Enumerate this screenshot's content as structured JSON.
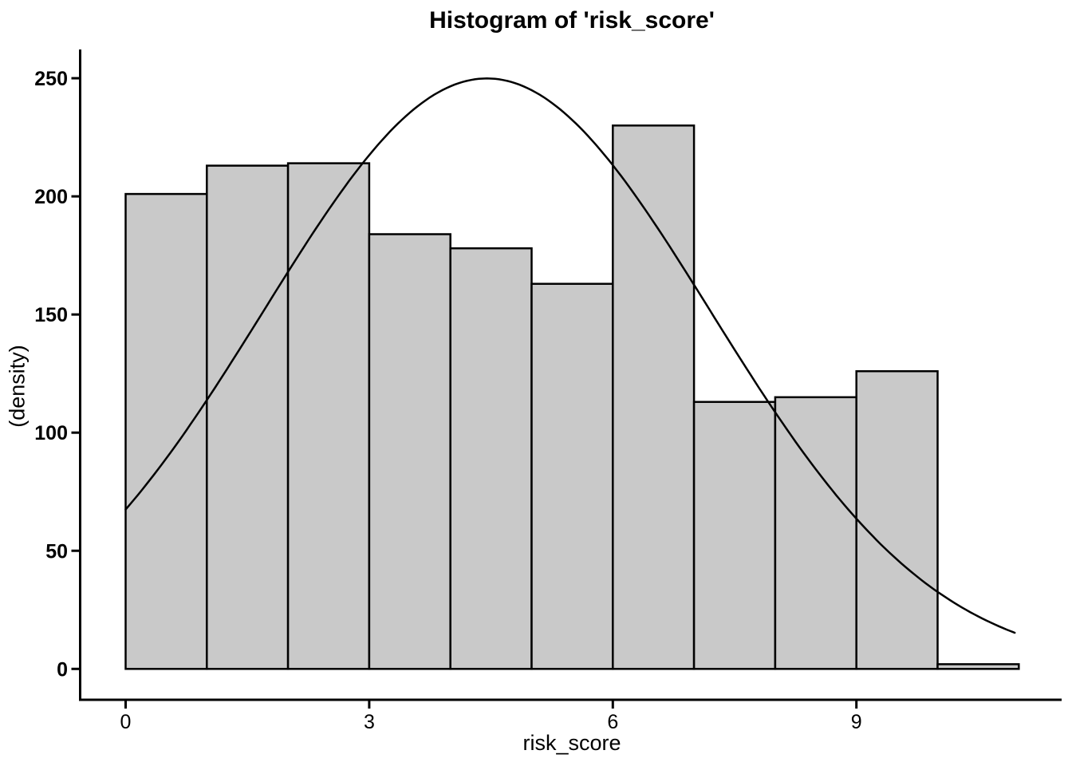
{
  "chart_data": {
    "type": "bar",
    "subtype": "histogram",
    "title": "Histogram of 'risk_score'",
    "xlabel": "risk_score",
    "ylabel": "(density)",
    "bin_start": 0,
    "bin_width": 1,
    "bin_edges": [
      0,
      1,
      2,
      3,
      4,
      5,
      6,
      7,
      8,
      9,
      10,
      11
    ],
    "values": [
      201,
      213,
      214,
      184,
      178,
      163,
      230,
      113,
      115,
      126,
      2
    ],
    "x_ticks": [
      0,
      3,
      6,
      9
    ],
    "y_ticks": [
      0,
      50,
      100,
      150,
      200,
      250
    ],
    "xlim": [
      -0.55,
      11.5
    ],
    "ylim": [
      0,
      262
    ],
    "grid": false,
    "legend": false,
    "bar_fill_color": "#c9c9c9",
    "bar_edge_color": "#000000",
    "axis_color": "#000000",
    "curve_color": "#000000",
    "density_curve": {
      "shape": "gaussian",
      "peak": 249.9,
      "mean": 4.45,
      "sd": 2.75,
      "x_start": 0,
      "x_end": 10.95
    }
  }
}
